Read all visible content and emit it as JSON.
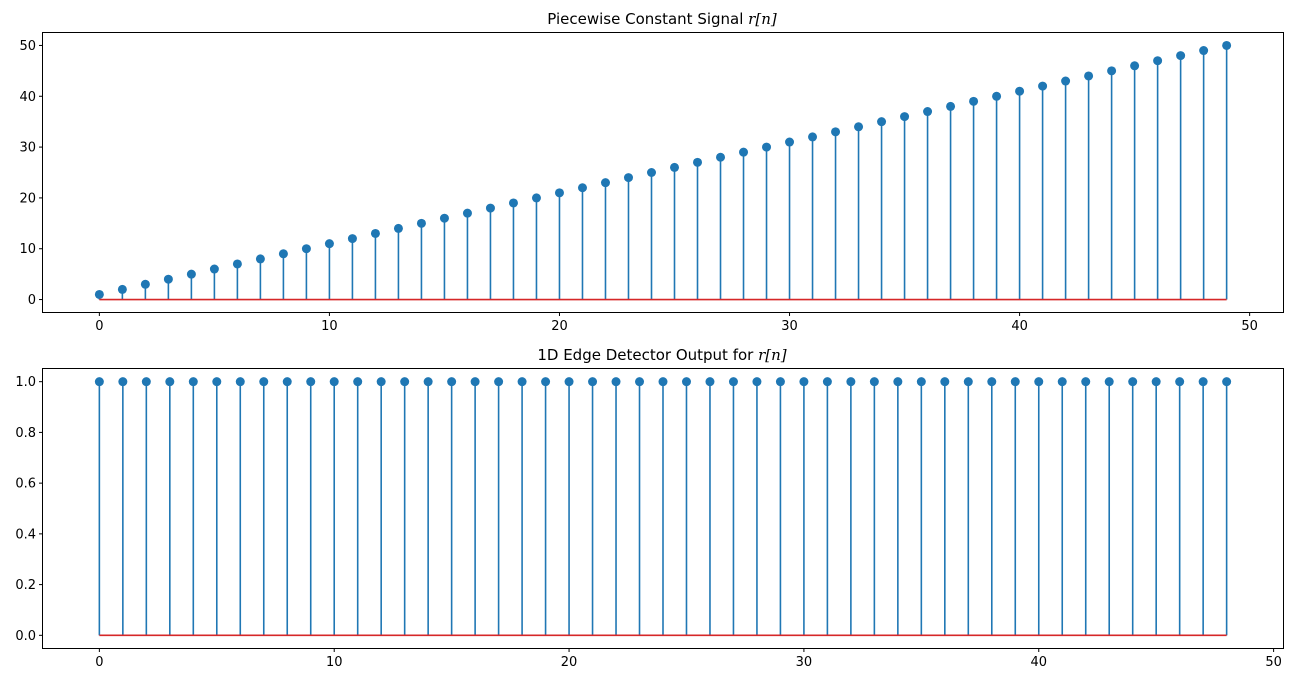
{
  "figure": {
    "background": "#ffffff",
    "stem_color": "#1f77b4",
    "baseline_color": "#d62728"
  },
  "chart_data": [
    {
      "type": "stem",
      "title": "Piecewise Constant Signal r[n]",
      "title_plain": "Piecewise Constant Signal ",
      "title_math": "r[n]",
      "xlabel": "",
      "ylabel": "",
      "xlim": [
        -2.45,
        51.45
      ],
      "ylim": [
        -2.45,
        52.45
      ],
      "xticks": [
        0,
        10,
        20,
        30,
        40,
        50
      ],
      "yticks": [
        0,
        10,
        20,
        30,
        40,
        50
      ],
      "xtick_labels": [
        "0",
        "10",
        "20",
        "30",
        "40",
        "50"
      ],
      "ytick_labels": [
        "0",
        "10",
        "20",
        "30",
        "40",
        "50"
      ],
      "baseline": 0,
      "x": [
        0,
        1,
        2,
        3,
        4,
        5,
        6,
        7,
        8,
        9,
        10,
        11,
        12,
        13,
        14,
        15,
        16,
        17,
        18,
        19,
        20,
        21,
        22,
        23,
        24,
        25,
        26,
        27,
        28,
        29,
        30,
        31,
        32,
        33,
        34,
        35,
        36,
        37,
        38,
        39,
        40,
        41,
        42,
        43,
        44,
        45,
        46,
        47,
        48,
        49
      ],
      "values": [
        1,
        2,
        3,
        4,
        5,
        6,
        7,
        8,
        9,
        10,
        11,
        12,
        13,
        14,
        15,
        16,
        17,
        18,
        19,
        20,
        21,
        22,
        23,
        24,
        25,
        26,
        27,
        28,
        29,
        30,
        31,
        32,
        33,
        34,
        35,
        36,
        37,
        38,
        39,
        40,
        41,
        42,
        43,
        44,
        45,
        46,
        47,
        48,
        49,
        50
      ],
      "grid": false,
      "legend": "none"
    },
    {
      "type": "stem",
      "title": "1D Edge Detector Output for r[n]",
      "title_plain": "1D Edge Detector Output for ",
      "title_math": "r[n]",
      "xlabel": "",
      "ylabel": "",
      "xlim": [
        -2.4,
        50.4
      ],
      "ylim": [
        -0.05,
        1.05
      ],
      "xticks": [
        0,
        10,
        20,
        30,
        40,
        50
      ],
      "yticks": [
        0.0,
        0.2,
        0.4,
        0.6,
        0.8,
        1.0
      ],
      "xtick_labels": [
        "0",
        "10",
        "20",
        "30",
        "40",
        "50"
      ],
      "ytick_labels": [
        "0.0",
        "0.2",
        "0.4",
        "0.6",
        "0.8",
        "1.0"
      ],
      "baseline": 0,
      "x": [
        0,
        1,
        2,
        3,
        4,
        5,
        6,
        7,
        8,
        9,
        10,
        11,
        12,
        13,
        14,
        15,
        16,
        17,
        18,
        19,
        20,
        21,
        22,
        23,
        24,
        25,
        26,
        27,
        28,
        29,
        30,
        31,
        32,
        33,
        34,
        35,
        36,
        37,
        38,
        39,
        40,
        41,
        42,
        43,
        44,
        45,
        46,
        47,
        48
      ],
      "values": [
        1,
        1,
        1,
        1,
        1,
        1,
        1,
        1,
        1,
        1,
        1,
        1,
        1,
        1,
        1,
        1,
        1,
        1,
        1,
        1,
        1,
        1,
        1,
        1,
        1,
        1,
        1,
        1,
        1,
        1,
        1,
        1,
        1,
        1,
        1,
        1,
        1,
        1,
        1,
        1,
        1,
        1,
        1,
        1,
        1,
        1,
        1,
        1,
        1
      ],
      "grid": false,
      "legend": "none"
    }
  ]
}
